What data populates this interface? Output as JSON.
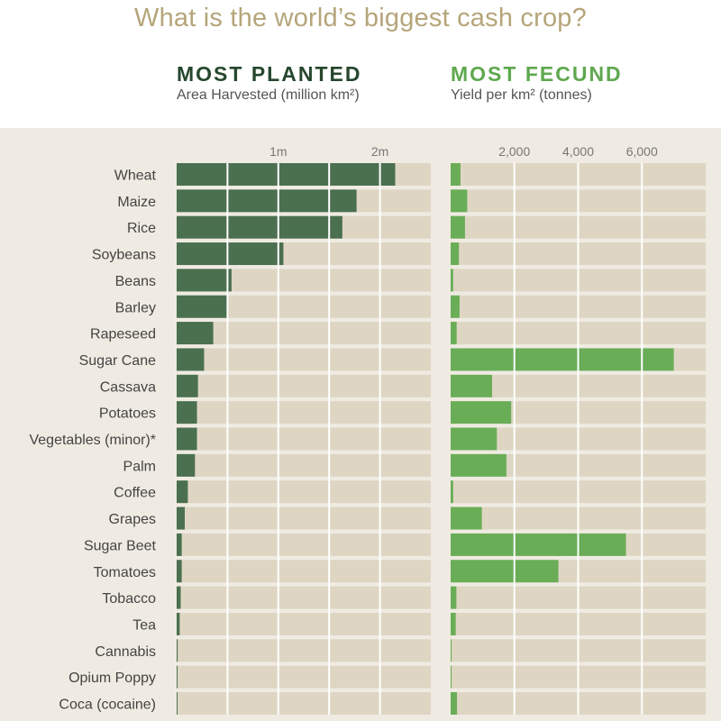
{
  "title": "What is the world’s biggest cash crop?",
  "colors": {
    "title": "#b5a57a",
    "panel_background": "#efebe2",
    "bar_background": "#ded6c3",
    "planted": "#4b7050",
    "fecund": "#6aad57",
    "grid": "#ffffff"
  },
  "chart_data": [
    {
      "type": "bar",
      "orientation": "horizontal",
      "title": "MOST PLANTED",
      "subtitle": "Area Harvested (million km²)",
      "categories": [
        "Wheat",
        "Maize",
        "Rice",
        "Soybeans",
        "Beans",
        "Barley",
        "Rapeseed",
        "Sugar Cane",
        "Cassava",
        "Potatoes",
        "Vegetables (minor)*",
        "Palm",
        "Coffee",
        "Grapes",
        "Sugar Beet",
        "Tomatoes",
        "Tobacco",
        "Tea",
        "Cannabis",
        "Opium Poppy",
        "Coca (cocaine)"
      ],
      "values": [
        2.15,
        1.77,
        1.63,
        1.05,
        0.54,
        0.5,
        0.36,
        0.27,
        0.21,
        0.2,
        0.2,
        0.18,
        0.11,
        0.08,
        0.05,
        0.05,
        0.04,
        0.03,
        0.01,
        0.005,
        0.005
      ],
      "xlim": [
        0,
        2.5
      ],
      "ticks": [
        0.5,
        1,
        1.5,
        2,
        2.5
      ],
      "tick_labels": [
        {
          "value": 1,
          "label": "1m"
        },
        {
          "value": 2,
          "label": "2m"
        }
      ],
      "grid": true
    },
    {
      "type": "bar",
      "orientation": "horizontal",
      "title": "MOST FECUND",
      "subtitle": "Yield per km² (tonnes)",
      "categories": [
        "Wheat",
        "Maize",
        "Rice",
        "Soybeans",
        "Beans",
        "Barley",
        "Rapeseed",
        "Sugar Cane",
        "Cassava",
        "Potatoes",
        "Vegetables (minor)*",
        "Palm",
        "Coffee",
        "Grapes",
        "Sugar Beet",
        "Tomatoes",
        "Tobacco",
        "Tea",
        "Cannabis",
        "Opium Poppy",
        "Coca (cocaine)"
      ],
      "values": [
        310,
        520,
        450,
        260,
        80,
        280,
        190,
        7000,
        1300,
        1900,
        1450,
        1750,
        80,
        980,
        5500,
        3380,
        180,
        160,
        30,
        30,
        200
      ],
      "xlim": [
        0,
        8000
      ],
      "ticks": [
        2000,
        4000,
        6000
      ],
      "tick_labels": [
        {
          "value": 2000,
          "label": "2,000"
        },
        {
          "value": 4000,
          "label": "4,000"
        },
        {
          "value": 6000,
          "label": "6,000"
        }
      ],
      "grid": true
    }
  ]
}
